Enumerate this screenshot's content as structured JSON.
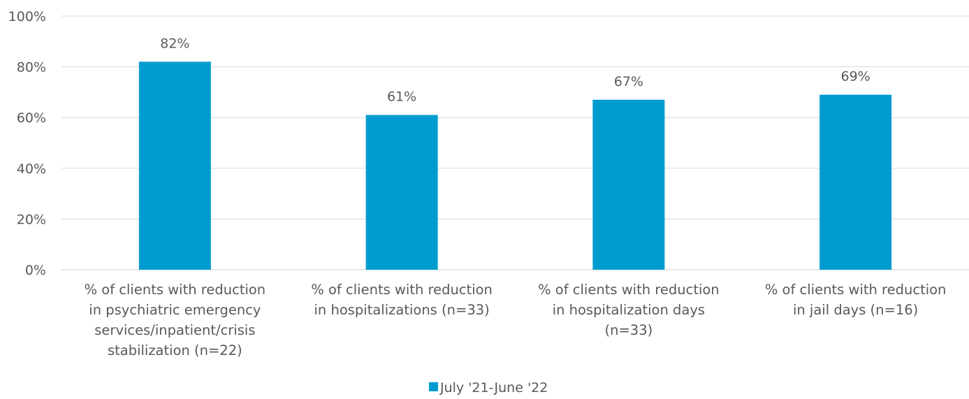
{
  "chart_data": {
    "type": "bar",
    "categories": [
      [
        "% of clients with reduction",
        "in psychiatric emergency",
        "services/inpatient/crisis",
        "stabilization (n=22)"
      ],
      [
        "% of clients with reduction",
        "in hospitalizations (n=33)"
      ],
      [
        "% of clients with reduction",
        "in hospitalization days",
        "(n=33)"
      ],
      [
        "% of clients with reduction",
        "in jail days (n=16)"
      ]
    ],
    "series": [
      {
        "name": "July '21-June '22",
        "values": [
          82,
          61,
          67,
          69
        ],
        "data_labels": [
          "82%",
          "61%",
          "67%",
          "69%"
        ],
        "color": "#009ccf"
      }
    ],
    "yticks": [
      "0%",
      "20%",
      "40%",
      "60%",
      "80%",
      "100%"
    ],
    "ylim": [
      0,
      100
    ],
    "grid": true,
    "legend_position": "bottom"
  }
}
